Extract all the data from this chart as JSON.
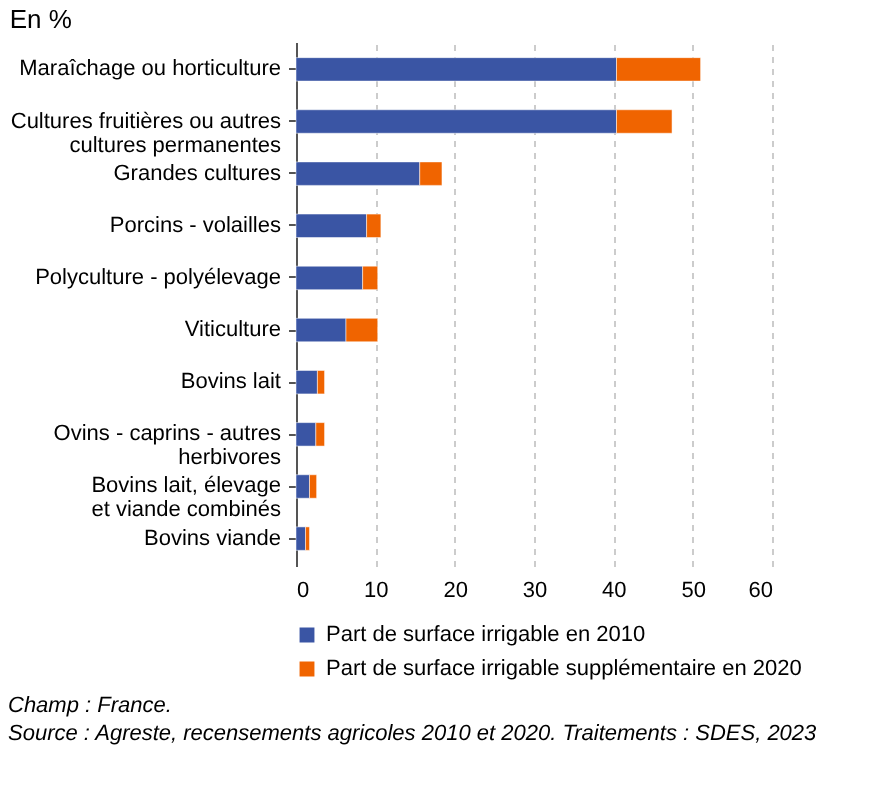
{
  "chart_data": {
    "type": "bar",
    "orientation": "horizontal",
    "stacked": true,
    "title": "En %",
    "categories": [
      "Maraîchage ou horticulture",
      "Cultures fruitières ou autres\ncultures permanentes",
      "Grandes cultures",
      "Porcins - volailles",
      "Polyculture - polyélevage",
      "Viticulture",
      "Bovins lait",
      "Ovins - caprins - autres\nherbivores",
      "Bovins lait, élevage\net viande combinés",
      "Bovins viande"
    ],
    "series": [
      {
        "name": "Part de surface irrigable en 2010",
        "color": "#3a55a4",
        "values": [
          40.4,
          40.4,
          15.6,
          8.9,
          8.4,
          6.3,
          2.7,
          2.5,
          1.7,
          1.2
        ]
      },
      {
        "name": "Part de surface irrigable supplémentaire en 2020",
        "color": "#f06400",
        "values": [
          10.6,
          7.0,
          2.8,
          1.8,
          1.9,
          4.0,
          0.9,
          1.1,
          0.9,
          0.5
        ]
      }
    ],
    "xlim": [
      0,
      60
    ],
    "xticks": [
      0,
      10,
      20,
      30,
      40,
      50,
      60
    ],
    "grid": "x",
    "legend": "bottom",
    "annotations": [
      "Champ : France.",
      "Source : Agreste, recensements agricoles 2010 et 2020. Traitements : SDES, 2023"
    ]
  }
}
